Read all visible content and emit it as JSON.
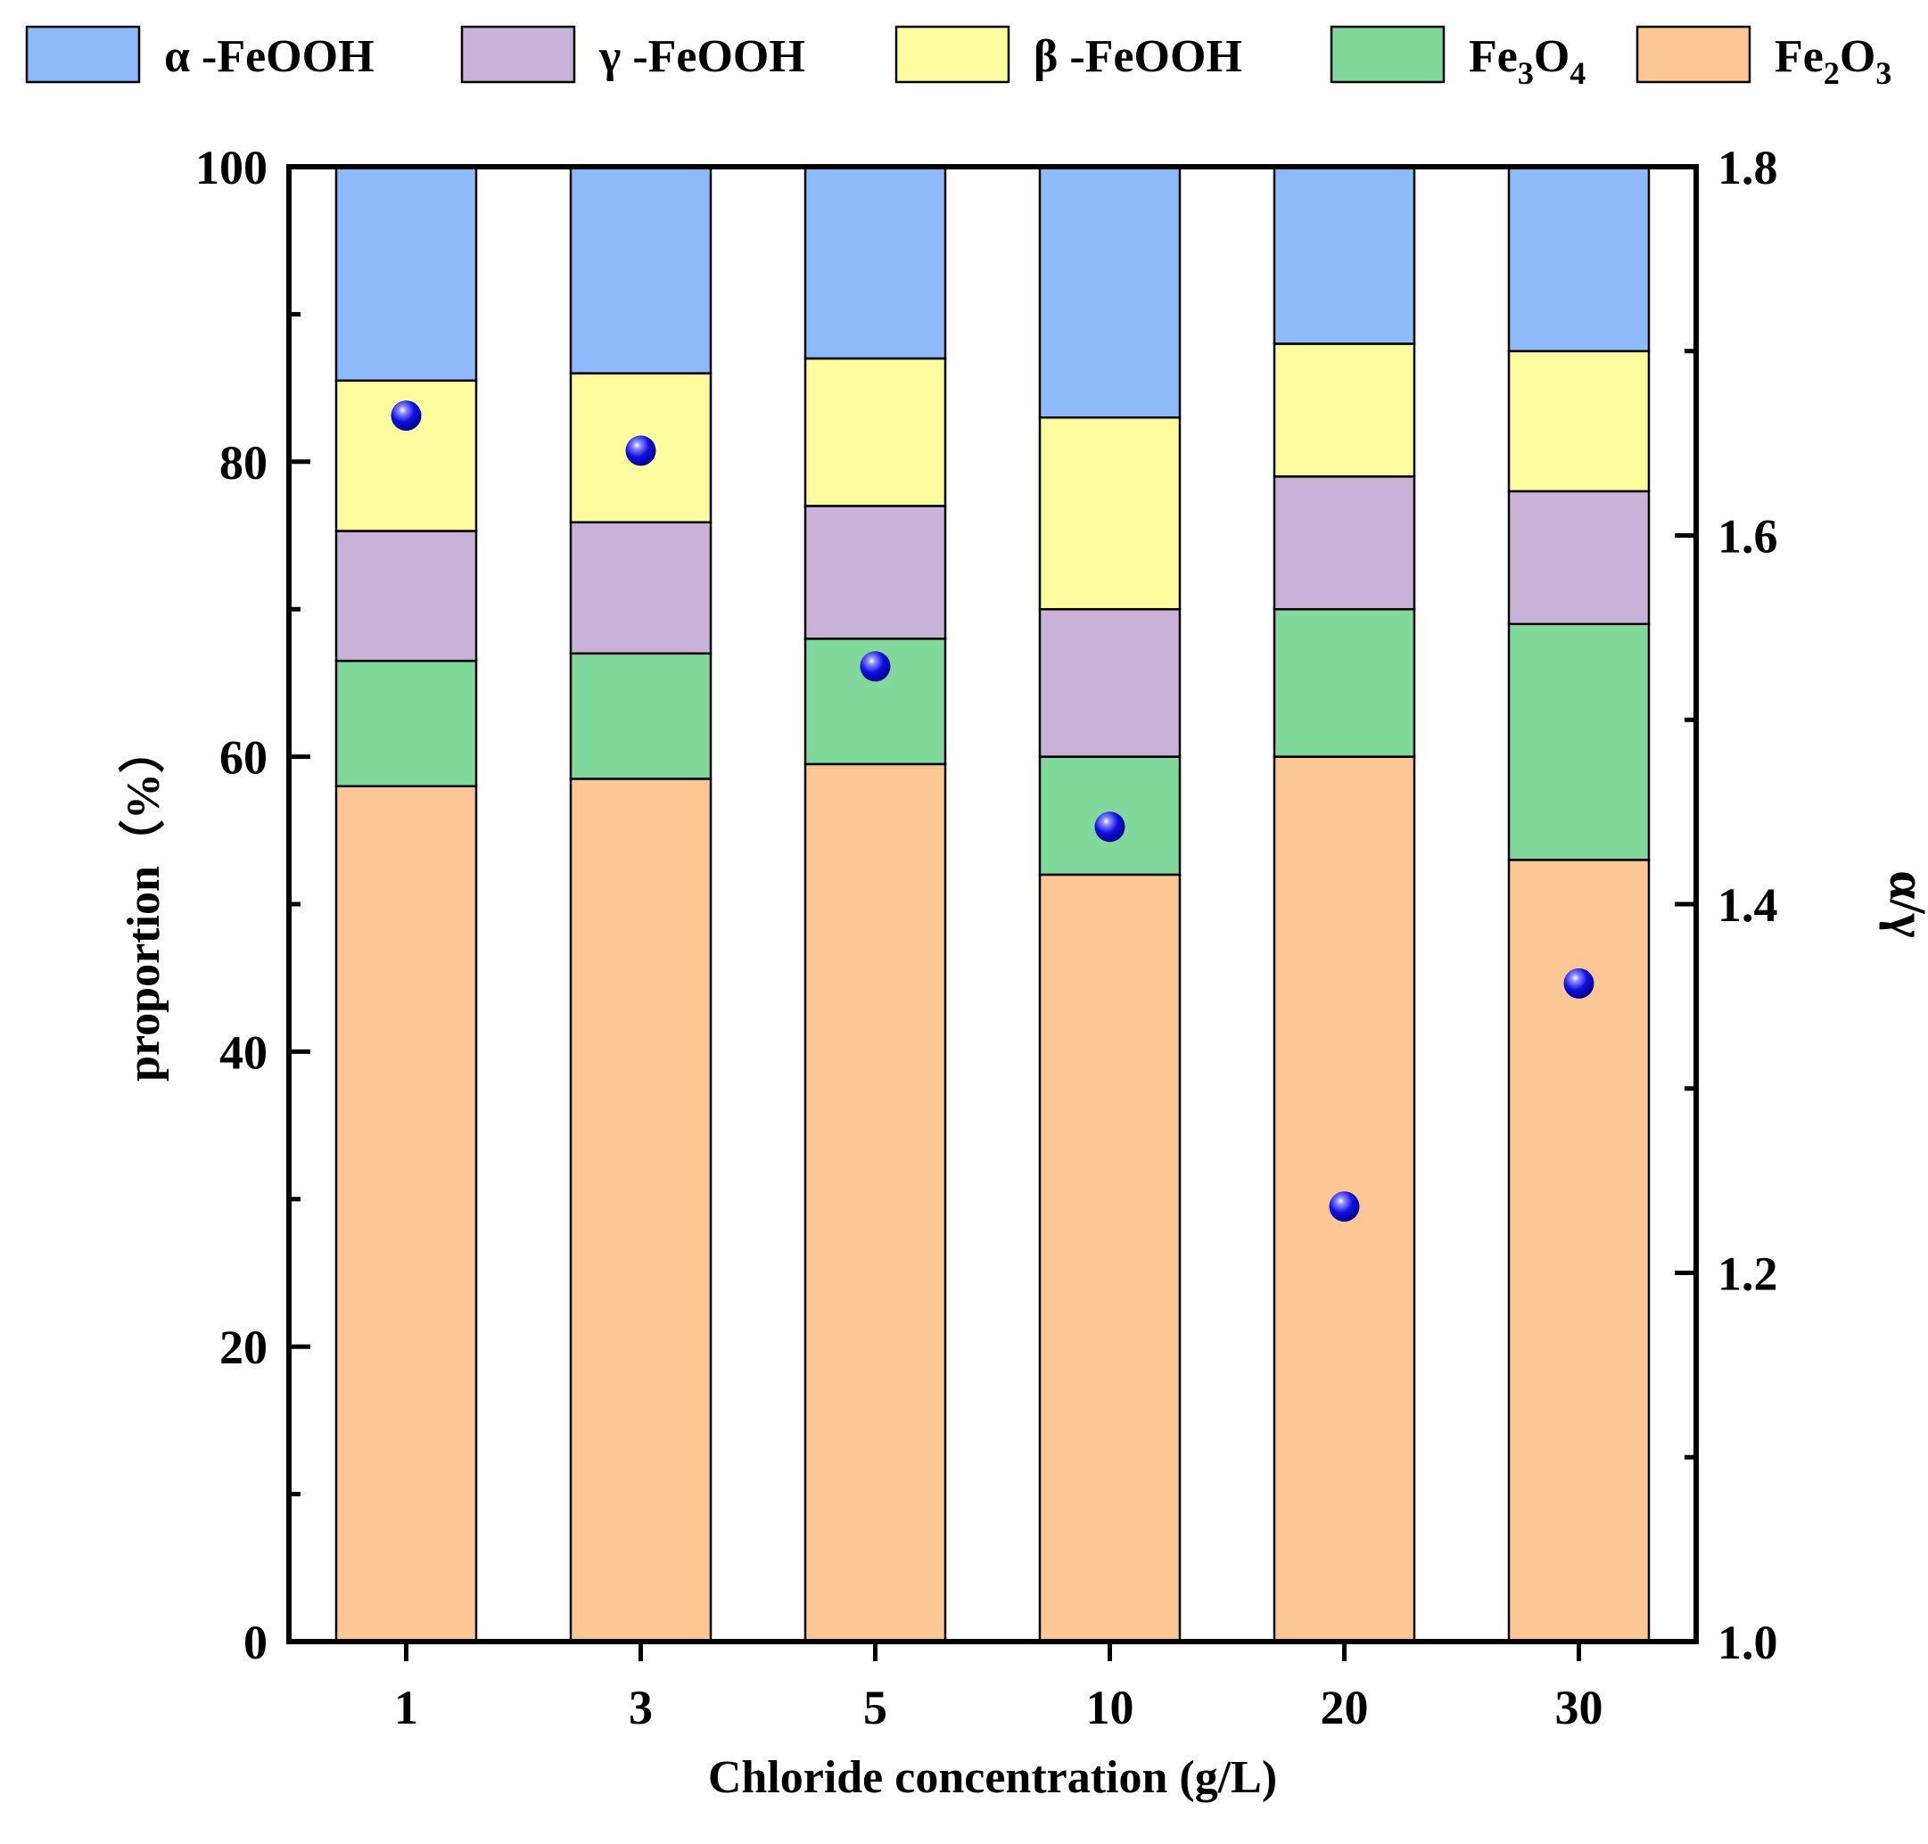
{
  "chart_data": {
    "type": "bar",
    "stacked": true,
    "categories": [
      "1",
      "3",
      "5",
      "10",
      "20",
      "30"
    ],
    "series": [
      {
        "name": "Fe2O3",
        "name_base": "Fe",
        "name_sub1": "2",
        "name_mid": "O",
        "name_sub2": "3",
        "color": "#FCC795",
        "values": [
          58,
          58.5,
          59.5,
          52,
          60,
          53
        ]
      },
      {
        "name": "Fe3O4",
        "name_base": "Fe",
        "name_sub1": "3",
        "name_mid": "O",
        "name_sub2": "4",
        "color": "#80D89A",
        "values": [
          8.5,
          8.5,
          8.5,
          8,
          10,
          16
        ]
      },
      {
        "name": "γ -FeOOH",
        "color": "#C8B2D8",
        "values": [
          8.8,
          8.9,
          9,
          10,
          9,
          9
        ]
      },
      {
        "name": "β -FeOOH",
        "color": "#FCFC9E",
        "values": [
          10.2,
          10.1,
          10,
          13,
          9,
          9.5
        ]
      },
      {
        "name": "α -FeOOH",
        "color": "#8EBAFC",
        "values": [
          14.5,
          14,
          13,
          17,
          12,
          12.5
        ]
      }
    ],
    "legend_order": [
      "α -FeOOH",
      "γ -FeOOH",
      "β -FeOOH",
      "Fe3O4",
      "Fe2O3"
    ],
    "scatter": {
      "name": "α/γ",
      "axis": "right",
      "color": "#1010E0",
      "values": [
        1.665,
        1.646,
        1.529,
        1.442,
        1.236,
        1.357
      ]
    },
    "xlabel": "Chloride concentration (g/L)",
    "ylabel": "proportion（%）",
    "ylabel_right": "α/γ",
    "ylim": [
      0,
      100
    ],
    "ylim_right": [
      1.0,
      1.8
    ],
    "yticks": [
      "0",
      "20",
      "40",
      "60",
      "80",
      "100"
    ],
    "yticks_right": [
      "1.0",
      "1.2",
      "1.4",
      "1.6",
      "1.8"
    ]
  }
}
